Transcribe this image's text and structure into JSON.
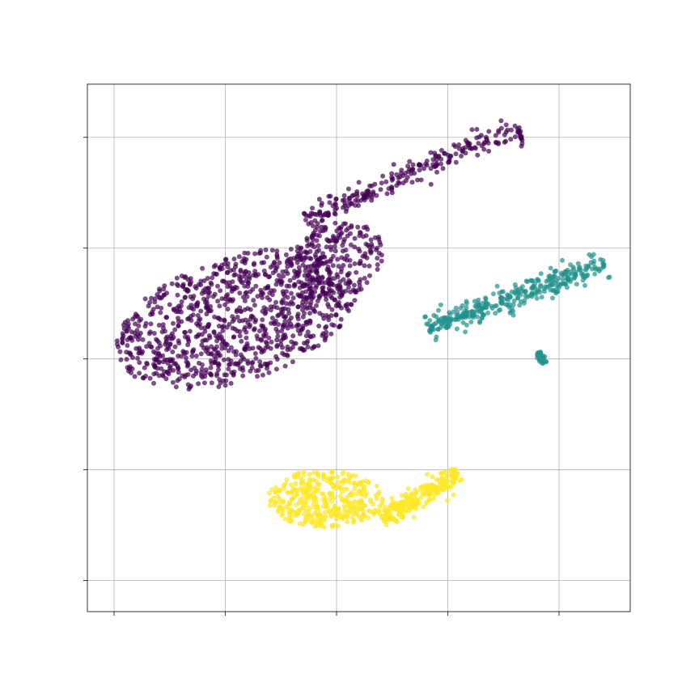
{
  "chart_data": {
    "type": "scatter",
    "title": "",
    "xlabel": "",
    "ylabel": "",
    "xlim": [
      -1.2,
      23.2
    ],
    "ylim": [
      -1.4,
      22.4
    ],
    "xticks": [
      0,
      5,
      10,
      15,
      20
    ],
    "yticks": [
      0,
      5,
      10,
      15,
      20
    ],
    "xticklabels": [],
    "yticklabels": [],
    "grid": true,
    "legend": "none",
    "point_alpha": 0.7,
    "marker_size": 3,
    "series": [
      {
        "color": "#440154",
        "approx_count": 1500,
        "regions": [
          {
            "shape": "ellipse",
            "cx": 5.5,
            "cy": 11.8,
            "rx": 5.6,
            "ry": 2.8,
            "angle_deg": 18,
            "count": 1000
          },
          {
            "shape": "ellipse",
            "cx": 9.9,
            "cy": 14.4,
            "rx": 2.3,
            "ry": 1.7,
            "angle_deg": 25,
            "count": 230
          },
          {
            "shape": "segment",
            "x0": 8.6,
            "y0": 16.3,
            "x1": 18.2,
            "y1": 20.5,
            "thickness": 0.5,
            "count": 240
          },
          {
            "shape": "segment",
            "x0": 18.2,
            "y0": 20.3,
            "x1": 18.4,
            "y1": 19.6,
            "thickness": 0.1,
            "count": 12
          }
        ]
      },
      {
        "color": "#21918c",
        "approx_count": 380,
        "regions": [
          {
            "shape": "segment",
            "x0": 14.1,
            "y0": 11.4,
            "x1": 22.1,
            "y1": 14.3,
            "thickness": 0.55,
            "count": 340
          },
          {
            "shape": "segment",
            "x0": 19.1,
            "y0": 10.3,
            "x1": 19.3,
            "y1": 9.8,
            "thickness": 0.15,
            "count": 25
          }
        ]
      },
      {
        "color": "#fde725",
        "approx_count": 650,
        "regions": [
          {
            "shape": "ellipse",
            "cx": 9.5,
            "cy": 3.7,
            "rx": 2.6,
            "ry": 1.3,
            "angle_deg": 0,
            "count": 380
          },
          {
            "shape": "segment",
            "x0": 12.0,
            "y0": 2.8,
            "x1": 15.5,
            "y1": 4.8,
            "thickness": 0.45,
            "count": 240
          }
        ]
      }
    ]
  }
}
